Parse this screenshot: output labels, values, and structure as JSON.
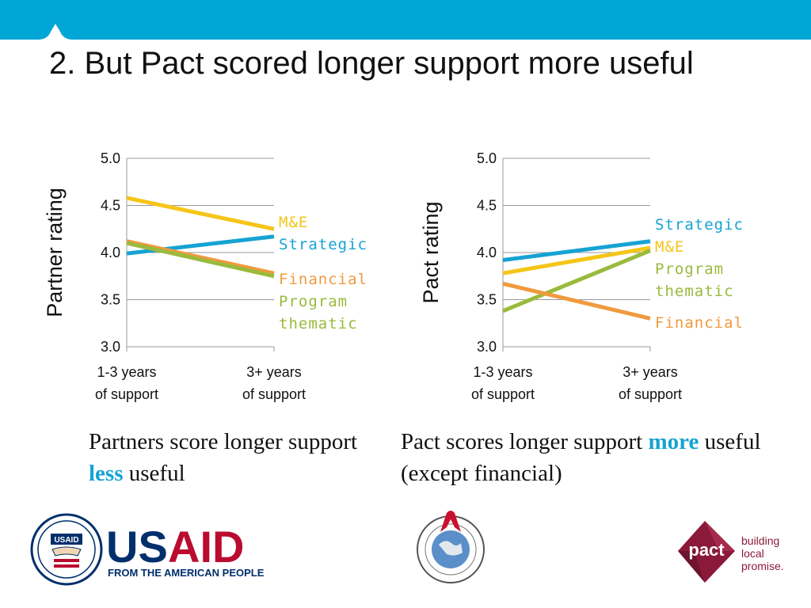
{
  "slide": {
    "title": "2. But Pact scored longer support more useful"
  },
  "chart_data": [
    {
      "type": "line",
      "ylabel": "Partner rating",
      "ylim": [
        3.0,
        5.0
      ],
      "yticks": [
        "5.0",
        "4.5",
        "4.0",
        "3.5",
        "3.0"
      ],
      "categories": [
        "1-3 years of support",
        "3+ years of support"
      ],
      "category_lines": [
        [
          "1-3 years",
          "of support"
        ],
        [
          "3+ years",
          "of support"
        ]
      ],
      "grid": true,
      "series": [
        {
          "name": "M&E",
          "values": [
            4.58,
            4.25
          ],
          "color": "#f5c518"
        },
        {
          "name": "Strategic",
          "values": [
            3.99,
            4.17
          ],
          "color": "#16a3d3"
        },
        {
          "name": "Financial",
          "values": [
            4.12,
            3.78
          ],
          "color": "#f09a3e"
        },
        {
          "name": "Program thematic",
          "values": [
            4.1,
            3.75
          ],
          "color": "#9aba3c"
        }
      ],
      "end_labels": [
        {
          "text": "M&E",
          "color": "#f5c518"
        },
        {
          "text": "Strategic",
          "color": "#16a3d3"
        },
        {
          "text": "Financial",
          "color": "#f09a3e"
        },
        {
          "text": "Program",
          "color": "#9aba3c"
        },
        {
          "text": "thematic",
          "color": "#9aba3c"
        }
      ]
    },
    {
      "type": "line",
      "ylabel": "Pact rating",
      "ylim": [
        3.0,
        5.0
      ],
      "yticks": [
        "5.0",
        "4.5",
        "4.0",
        "3.5",
        "3.0"
      ],
      "categories": [
        "1-3 years of support",
        "3+ years of support"
      ],
      "category_lines": [
        [
          "1-3 years",
          "of support"
        ],
        [
          "3+ years",
          "of support"
        ]
      ],
      "grid": true,
      "series": [
        {
          "name": "Strategic",
          "values": [
            3.92,
            4.12
          ],
          "color": "#16a3d3"
        },
        {
          "name": "M&E",
          "values": [
            3.78,
            4.05
          ],
          "color": "#f5c518"
        },
        {
          "name": "Program thematic",
          "values": [
            3.38,
            4.02
          ],
          "color": "#9aba3c"
        },
        {
          "name": "Financial",
          "values": [
            3.67,
            3.3
          ],
          "color": "#f09a3e"
        }
      ],
      "end_labels": [
        {
          "text": "Strategic",
          "color": "#16a3d3"
        },
        {
          "text": "M&E",
          "color": "#f5c518"
        },
        {
          "text": "Program",
          "color": "#9aba3c"
        },
        {
          "text": "thematic",
          "color": "#9aba3c"
        },
        {
          "text": "Financial",
          "color": "#f09a3e"
        }
      ]
    }
  ],
  "captions": {
    "left": {
      "before": "Partners score longer support ",
      "emphasis": "less",
      "after": " useful"
    },
    "right": {
      "before": "Pact scores longer support ",
      "emphasis": "more",
      "after": " useful (except financial)"
    }
  },
  "logos": {
    "usaid": {
      "wordmark_us": "US",
      "wordmark_aid": "AID",
      "tagline": "FROM THE AMERICAN PEOPLE",
      "seal_badge": "USAID"
    },
    "pact": {
      "name": "pact",
      "tagline_lines": [
        "building",
        "local",
        "promise."
      ]
    }
  },
  "colors": {
    "top_bar": "#00a6d6",
    "accent_blue": "#16a3d3",
    "usaid_navy": "#002f6c",
    "usaid_red": "#ba0c2f",
    "pact_maroon": "#8b1a3a"
  }
}
